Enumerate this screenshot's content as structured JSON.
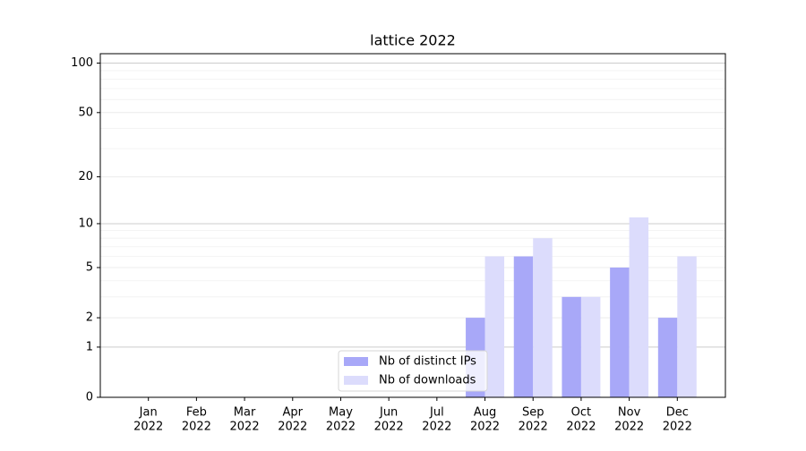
{
  "chart_data": {
    "type": "bar",
    "title": "lattice 2022",
    "categories": [
      [
        "Jan",
        "2022"
      ],
      [
        "Feb",
        "2022"
      ],
      [
        "Mar",
        "2022"
      ],
      [
        "Apr",
        "2022"
      ],
      [
        "May",
        "2022"
      ],
      [
        "Jun",
        "2022"
      ],
      [
        "Jul",
        "2022"
      ],
      [
        "Aug",
        "2022"
      ],
      [
        "Sep",
        "2022"
      ],
      [
        "Oct",
        "2022"
      ],
      [
        "Nov",
        "2022"
      ],
      [
        "Dec",
        "2022"
      ]
    ],
    "series": [
      {
        "name": "Nb of distinct IPs",
        "color": "#a8a8f8",
        "values": [
          0,
          0,
          0,
          0,
          0,
          0,
          0,
          2,
          6,
          3,
          5,
          2
        ]
      },
      {
        "name": "Nb of downloads",
        "color": "#dcdcfc",
        "values": [
          0,
          0,
          0,
          0,
          0,
          0,
          0,
          6,
          8,
          3,
          11,
          6
        ]
      }
    ],
    "yscale": "log1p",
    "ylim": [
      0,
      114
    ],
    "yticks": [
      0,
      1,
      2,
      5,
      10,
      20,
      50,
      100
    ],
    "yminor": [
      3,
      4,
      6,
      7,
      8,
      9,
      30,
      40,
      60,
      70,
      80,
      90
    ],
    "grid": true,
    "legend": "lower center"
  }
}
